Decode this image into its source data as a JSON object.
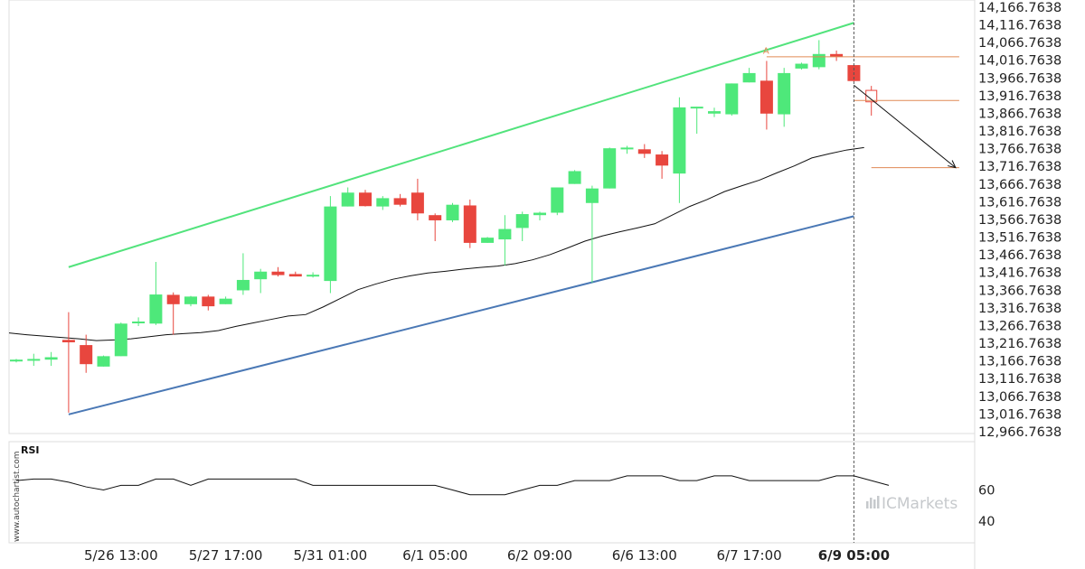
{
  "chart_data": {
    "type": "candlestick",
    "y_ticks": [
      "14,166.7638",
      "14,116.7638",
      "14,066.7638",
      "14,016.7638",
      "13,966.7638",
      "13,916.7638",
      "13,866.7638",
      "13,816.7638",
      "13,766.7638",
      "13,716.7638",
      "13,666.7638",
      "13,616.7638",
      "13,566.7638",
      "13,516.7638",
      "13,466.7638",
      "13,416.7638",
      "13,366.7638",
      "13,316.7638",
      "13,266.7638",
      "13,216.7638",
      "13,166.7638",
      "13,116.7638",
      "13,066.7638",
      "13,016.7638",
      "12,966.7638"
    ],
    "ylim": [
      12950,
      14175
    ],
    "x_ticks": [
      {
        "label": "5/26 13:00",
        "index": 6
      },
      {
        "label": "5/27 17:00",
        "index": 12
      },
      {
        "label": "5/31 01:00",
        "index": 18
      },
      {
        "label": "6/1 05:00",
        "index": 24
      },
      {
        "label": "6/2 09:00",
        "index": 30
      },
      {
        "label": "6/6 13:00",
        "index": 36
      },
      {
        "label": "6/7 17:00",
        "index": 42
      },
      {
        "label": "6/9 05:00",
        "index": 48,
        "bold": true
      }
    ],
    "candles": [
      {
        "o": 13155,
        "h": 13160,
        "l": 13150,
        "c": 13158
      },
      {
        "o": 13158,
        "h": 13175,
        "l": 13140,
        "c": 13160
      },
      {
        "o": 13158,
        "h": 13180,
        "l": 13140,
        "c": 13165
      },
      {
        "o": 13215,
        "h": 13295,
        "l": 13005,
        "c": 13208
      },
      {
        "o": 13200,
        "h": 13230,
        "l": 13120,
        "c": 13145
      },
      {
        "o": 13138,
        "h": 13170,
        "l": 13138,
        "c": 13168
      },
      {
        "o": 13168,
        "h": 13265,
        "l": 13168,
        "c": 13262
      },
      {
        "o": 13265,
        "h": 13280,
        "l": 13255,
        "c": 13268
      },
      {
        "o": 13262,
        "h": 13440,
        "l": 13258,
        "c": 13346
      },
      {
        "o": 13345,
        "h": 13352,
        "l": 13230,
        "c": 13318
      },
      {
        "o": 13318,
        "h": 13342,
        "l": 13312,
        "c": 13340
      },
      {
        "o": 13340,
        "h": 13345,
        "l": 13300,
        "c": 13312
      },
      {
        "o": 13318,
        "h": 13340,
        "l": 13318,
        "c": 13334
      },
      {
        "o": 13358,
        "h": 13465,
        "l": 13345,
        "c": 13388
      },
      {
        "o": 13390,
        "h": 13420,
        "l": 13350,
        "c": 13412
      },
      {
        "o": 13412,
        "h": 13425,
        "l": 13398,
        "c": 13402
      },
      {
        "o": 13405,
        "h": 13412,
        "l": 13398,
        "c": 13398
      },
      {
        "o": 13400,
        "h": 13410,
        "l": 13395,
        "c": 13403
      },
      {
        "o": 13385,
        "h": 13630,
        "l": 13350,
        "c": 13600
      },
      {
        "o": 13600,
        "h": 13655,
        "l": 13600,
        "c": 13640
      },
      {
        "o": 13640,
        "h": 13648,
        "l": 13600,
        "c": 13601
      },
      {
        "o": 13600,
        "h": 13630,
        "l": 13590,
        "c": 13624
      },
      {
        "o": 13624,
        "h": 13636,
        "l": 13600,
        "c": 13605
      },
      {
        "o": 13640,
        "h": 13680,
        "l": 13560,
        "c": 13580
      },
      {
        "o": 13575,
        "h": 13580,
        "l": 13500,
        "c": 13560
      },
      {
        "o": 13560,
        "h": 13610,
        "l": 13555,
        "c": 13605
      },
      {
        "o": 13603,
        "h": 13620,
        "l": 13480,
        "c": 13495
      },
      {
        "o": 13495,
        "h": 13512,
        "l": 13495,
        "c": 13510
      },
      {
        "o": 13505,
        "h": 13575,
        "l": 13430,
        "c": 13535
      },
      {
        "o": 13538,
        "h": 13585,
        "l": 13500,
        "c": 13578
      },
      {
        "o": 13575,
        "h": 13585,
        "l": 13560,
        "c": 13582
      },
      {
        "o": 13582,
        "h": 13655,
        "l": 13575,
        "c": 13655
      },
      {
        "o": 13665,
        "h": 13705,
        "l": 13665,
        "c": 13702
      },
      {
        "o": 13610,
        "h": 13660,
        "l": 13380,
        "c": 13652
      },
      {
        "o": 13652,
        "h": 13770,
        "l": 13652,
        "c": 13768
      },
      {
        "o": 13768,
        "h": 13775,
        "l": 13752,
        "c": 13770
      },
      {
        "o": 13765,
        "h": 13780,
        "l": 13740,
        "c": 13752
      },
      {
        "o": 13750,
        "h": 13760,
        "l": 13680,
        "c": 13718
      },
      {
        "o": 13695,
        "h": 13915,
        "l": 13610,
        "c": 13886
      },
      {
        "o": 13886,
        "h": 13888,
        "l": 13810,
        "c": 13888
      },
      {
        "o": 13868,
        "h": 13885,
        "l": 13858,
        "c": 13875
      },
      {
        "o": 13866,
        "h": 13955,
        "l": 13862,
        "c": 13955
      },
      {
        "o": 13958,
        "h": 14000,
        "l": 13958,
        "c": 13985
      },
      {
        "o": 13963,
        "h": 14020,
        "l": 13822,
        "c": 13868
      },
      {
        "o": 13866,
        "h": 14000,
        "l": 13830,
        "c": 13985
      },
      {
        "o": 13998,
        "h": 14015,
        "l": 13995,
        "c": 14012
      },
      {
        "o": 14002,
        "h": 14080,
        "l": 13996,
        "c": 14040
      },
      {
        "o": 14040,
        "h": 14050,
        "l": 14020,
        "c": 14032
      },
      {
        "o": 14008,
        "h": 14008,
        "l": 13960,
        "c": 13962
      },
      {
        "o": 13935,
        "h": 13948,
        "l": 13862,
        "c": 13902,
        "hollow": true
      }
    ],
    "moving_average": [
      13235,
      13230,
      13226,
      13222,
      13218,
      13213,
      13215,
      13218,
      13224,
      13230,
      13233,
      13236,
      13242,
      13254,
      13264,
      13274,
      13284,
      13288,
      13310,
      13335,
      13360,
      13376,
      13390,
      13400,
      13408,
      13413,
      13419,
      13424,
      13428,
      13435,
      13446,
      13461,
      13480,
      13500,
      13515,
      13527,
      13538,
      13550,
      13575,
      13600,
      13620,
      13643,
      13660,
      13676,
      13697,
      13717,
      13740,
      13752,
      13763,
      13770
    ],
    "channel_upper": {
      "start": {
        "index": 3,
        "value": 13425
      },
      "end": {
        "index": 48,
        "value": 14130
      }
    },
    "channel_lower": {
      "start": {
        "index": 3,
        "value": 13000
      },
      "end": {
        "index": 48,
        "value": 13572
      }
    },
    "levels": [
      {
        "index_start": 43,
        "index_end": 53,
        "value": 14032
      },
      {
        "index_start": 48,
        "index_end": 53,
        "value": 13906
      },
      {
        "index_start": 49,
        "index_end": 53,
        "value": 13712
      }
    ],
    "arrow": {
      "from": {
        "index": 48,
        "value": 13950
      },
      "to": {
        "index": 53,
        "value": 13712
      }
    },
    "point_label": {
      "text": "A",
      "index": 43,
      "value": 14035
    },
    "current_index": 48,
    "rsi": {
      "label": "RSI",
      "ticks": [
        "60",
        "40"
      ],
      "ylim": [
        28,
        88
      ],
      "values": [
        66,
        67,
        67,
        65,
        62,
        60,
        63,
        63,
        67,
        67,
        63,
        67,
        67,
        67,
        67,
        67,
        67,
        63,
        63,
        63,
        63,
        63,
        63,
        63,
        63,
        60,
        57,
        57,
        57,
        60,
        63,
        63,
        66,
        66,
        66,
        69,
        69,
        69,
        66,
        66,
        69,
        69,
        66,
        66,
        66,
        66,
        66,
        69,
        69,
        66,
        63
      ]
    },
    "colors": {
      "bull": "#4ee87a",
      "bear": "#e8463e",
      "upper_channel": "#52e37c",
      "lower_channel": "#4a78b5",
      "level": "#e08a55",
      "ma": "#111111",
      "grid_frame": "#d9d9d9"
    }
  },
  "watermark": "www.autochartist.com",
  "brand": "ICMarkets"
}
